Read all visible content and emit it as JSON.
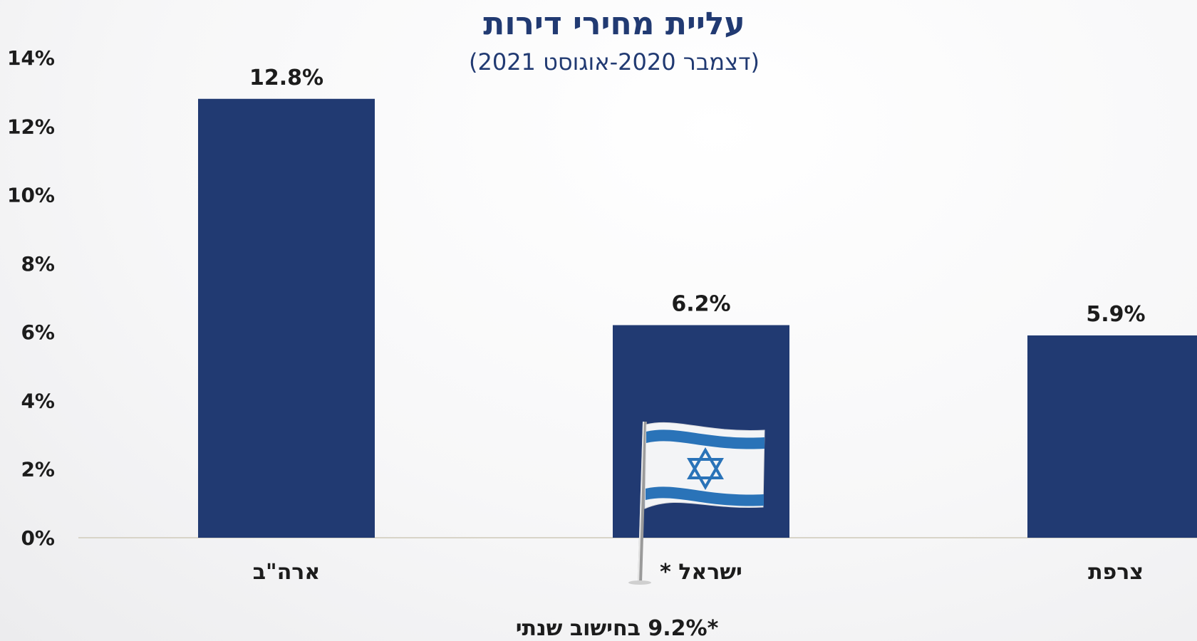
{
  "chart_data": {
    "type": "bar",
    "title": "עליית מחירי דירות",
    "subtitle": "(דצמבר 2020-אוגוסט 2021)",
    "categories": [
      "ארה\"ב",
      "ישראל",
      "צרפת"
    ],
    "category_markers": [
      "",
      "*",
      ""
    ],
    "values": [
      12.8,
      6.2,
      5.9
    ],
    "data_labels": [
      "12.8%",
      "6.2%",
      "5.9%"
    ],
    "ylim": [
      0,
      14
    ],
    "yticks": [
      0,
      2,
      4,
      6,
      8,
      10,
      12,
      14
    ],
    "ytick_labels": [
      "0%",
      "2%",
      "4%",
      "6%",
      "8%",
      "10%",
      "12%",
      "14%"
    ],
    "grid": false,
    "bar_color": "#213a72",
    "footnote": "*9.2% בחישוב שנתי",
    "highlight_icon": "israel-flag-icon"
  }
}
